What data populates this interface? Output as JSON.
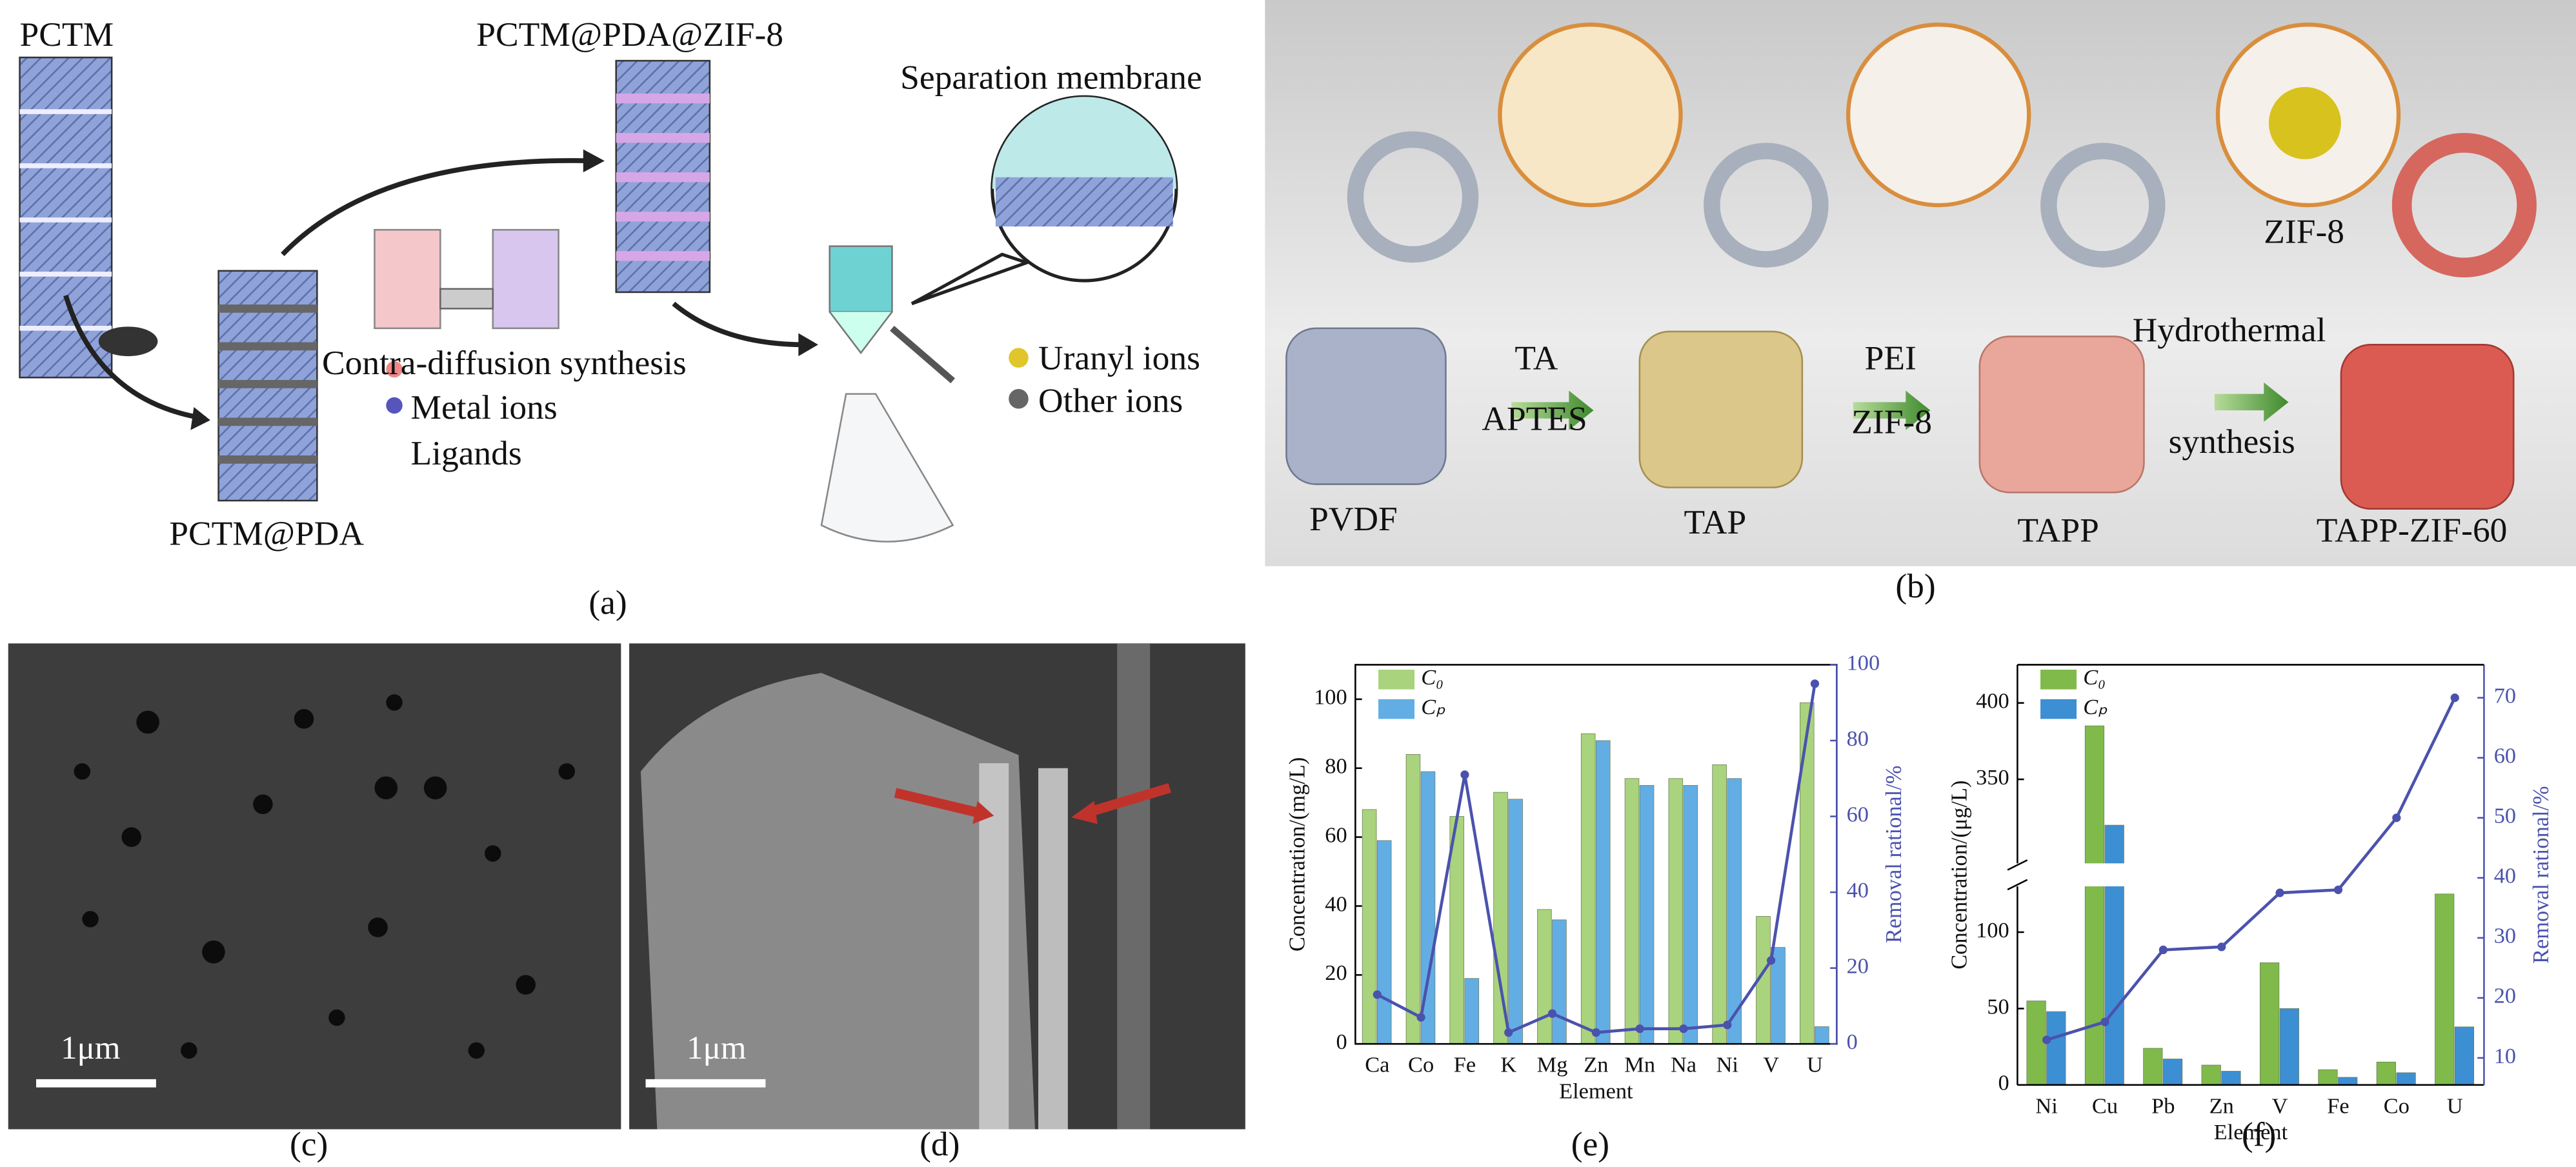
{
  "figure": {
    "a": {
      "label": "(a)",
      "texts": [
        "PCTM",
        "PCTM@PDA@ZIF-8",
        "Separation membrane",
        "Contra-diffusion synthesis",
        "Metal ions",
        "Ligands",
        "Uranyl ions",
        "Other ions",
        "PCTM@PDA"
      ]
    },
    "b": {
      "label": "(b)",
      "texts": [
        "PVDF",
        "TA",
        "APTES",
        "TAP",
        "PEI",
        "ZIF-8",
        "TAPP",
        "Hydrothermal",
        "synthesis",
        "TAPP-ZIF-60",
        "ZIF-8"
      ]
    },
    "c": {
      "label": "(c)",
      "scale": "1μm"
    },
    "d": {
      "label": "(d)",
      "scale": "1μm"
    },
    "e": {
      "label": "(e)"
    },
    "f": {
      "label": "(f)"
    }
  },
  "chart_data": [
    {
      "type": "bar",
      "categories": [
        "Ca",
        "Co",
        "Fe",
        "K",
        "Mg",
        "Zn",
        "Mn",
        "Na",
        "Ni",
        "V",
        "U"
      ],
      "series": [
        {
          "name": "C₀",
          "color": "#a9d37c",
          "values": [
            68,
            84,
            66,
            73,
            39,
            90,
            77,
            77,
            81,
            37,
            99
          ]
        },
        {
          "name": "Cₚ",
          "color": "#62aee4",
          "values": [
            59,
            79,
            19,
            71,
            36,
            88,
            75,
            75,
            77,
            28,
            5
          ]
        },
        {
          "color": "#4b52ad",
          "values": [
            13,
            7,
            71,
            3,
            8,
            3,
            4,
            4,
            5,
            22,
            95
          ],
          "axis": "y2"
        }
      ],
      "xlabel": "Element",
      "ylabel": "Concentration/(mg/L)",
      "y2label": "Removal rational/%",
      "ylim": [
        0,
        110
      ],
      "yticks": [
        0,
        20,
        40,
        60,
        80,
        100
      ],
      "y2lim": [
        0,
        100
      ],
      "y2ticks": [
        0,
        20,
        40,
        60,
        80,
        100
      ]
    },
    {
      "type": "bar",
      "categories": [
        "Ni",
        "Cu",
        "Pb",
        "Zn",
        "V",
        "Fe",
        "Co",
        "U"
      ],
      "series": [
        {
          "name": "C₀",
          "color": "#7fba4a",
          "values": [
            55,
            385,
            24,
            13,
            80,
            10,
            15,
            125
          ]
        },
        {
          "name": "Cₚ",
          "color": "#3d8fd3",
          "values": [
            48,
            320,
            17,
            9,
            50,
            5,
            8,
            38
          ]
        },
        {
          "color": "#4b52ad",
          "values": [
            13,
            16,
            28,
            28.5,
            37.5,
            38,
            50,
            70
          ],
          "axis": "y2"
        }
      ],
      "xlabel": "Element",
      "ylabel": "Concentration/(μg/L)",
      "y2label": "Removal rational/%",
      "ylim": [
        0,
        425
      ],
      "ybreak": [
        130,
        295
      ],
      "yticks": [
        0,
        50,
        100,
        350,
        400
      ],
      "y2lim": [
        5.5,
        75.5
      ],
      "y2ticks": [
        10,
        20,
        30,
        40,
        50,
        60,
        70
      ]
    }
  ]
}
